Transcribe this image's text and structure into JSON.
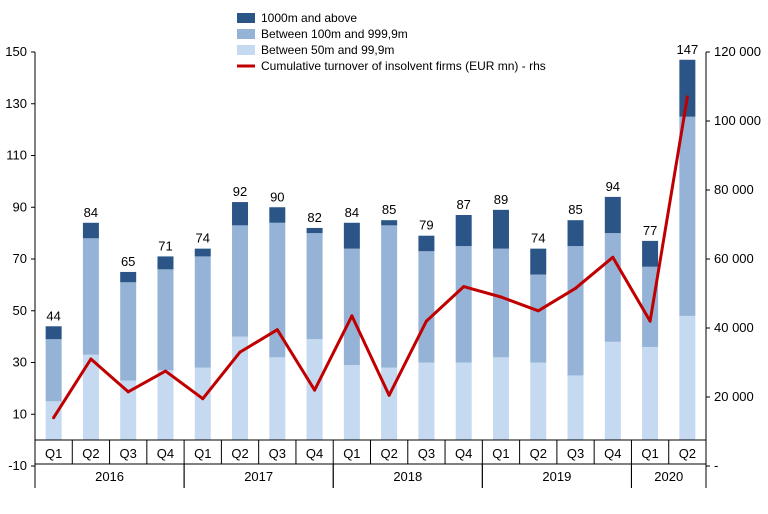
{
  "chart_data": {
    "type": "bar",
    "stacked": true,
    "categories": [
      "Q1",
      "Q2",
      "Q3",
      "Q4",
      "Q1",
      "Q2",
      "Q3",
      "Q4",
      "Q1",
      "Q2",
      "Q3",
      "Q4",
      "Q1",
      "Q2",
      "Q3",
      "Q4",
      "Q1",
      "Q2"
    ],
    "years": [
      {
        "label": "2016",
        "start": 0,
        "end": 3
      },
      {
        "label": "2017",
        "start": 4,
        "end": 7
      },
      {
        "label": "2018",
        "start": 8,
        "end": 11
      },
      {
        "label": "2019",
        "start": 12,
        "end": 15
      },
      {
        "label": "2020",
        "start": 16,
        "end": 17
      }
    ],
    "series": [
      {
        "name": "Between 50m and 99,9m",
        "color": "#c5d9f1",
        "values": [
          15,
          33,
          23,
          27,
          28,
          40,
          32,
          39,
          29,
          28,
          30,
          30,
          32,
          30,
          25,
          38,
          36,
          48
        ]
      },
      {
        "name": "Between 100m and 999,9m",
        "color": "#95b3d7",
        "values": [
          24,
          45,
          38,
          39,
          43,
          43,
          52,
          41,
          45,
          55,
          43,
          45,
          42,
          34,
          50,
          42,
          31,
          77
        ]
      },
      {
        "name": "1000m and above",
        "color": "#2c5587",
        "values": [
          5,
          6,
          4,
          5,
          3,
          9,
          6,
          2,
          10,
          2,
          6,
          12,
          15,
          10,
          10,
          14,
          10,
          22
        ]
      }
    ],
    "totals": [
      44,
      84,
      65,
      71,
      74,
      92,
      90,
      82,
      84,
      85,
      79,
      87,
      89,
      74,
      85,
      94,
      77,
      147
    ],
    "line": {
      "name": "Cumulative turnover of insolvent firms (EUR mn) - rhs",
      "color": "#c00000",
      "values": [
        14000,
        31000,
        21500,
        27500,
        19500,
        33000,
        39500,
        22000,
        43500,
        20500,
        42000,
        52000,
        49000,
        45000,
        51500,
        60500,
        42000,
        107000
      ]
    },
    "y_left": {
      "min": -10,
      "max": 150,
      "ticks": [
        "-10",
        "10",
        "30",
        "50",
        "70",
        "90",
        "110",
        "130",
        "150"
      ]
    },
    "y_right": {
      "min": 0,
      "max": 120000,
      "ticks": [
        "-",
        "20 000",
        "40 000",
        "60 000",
        "80 000",
        "100 000",
        "120 000"
      ]
    },
    "legend_position": "top-center"
  }
}
